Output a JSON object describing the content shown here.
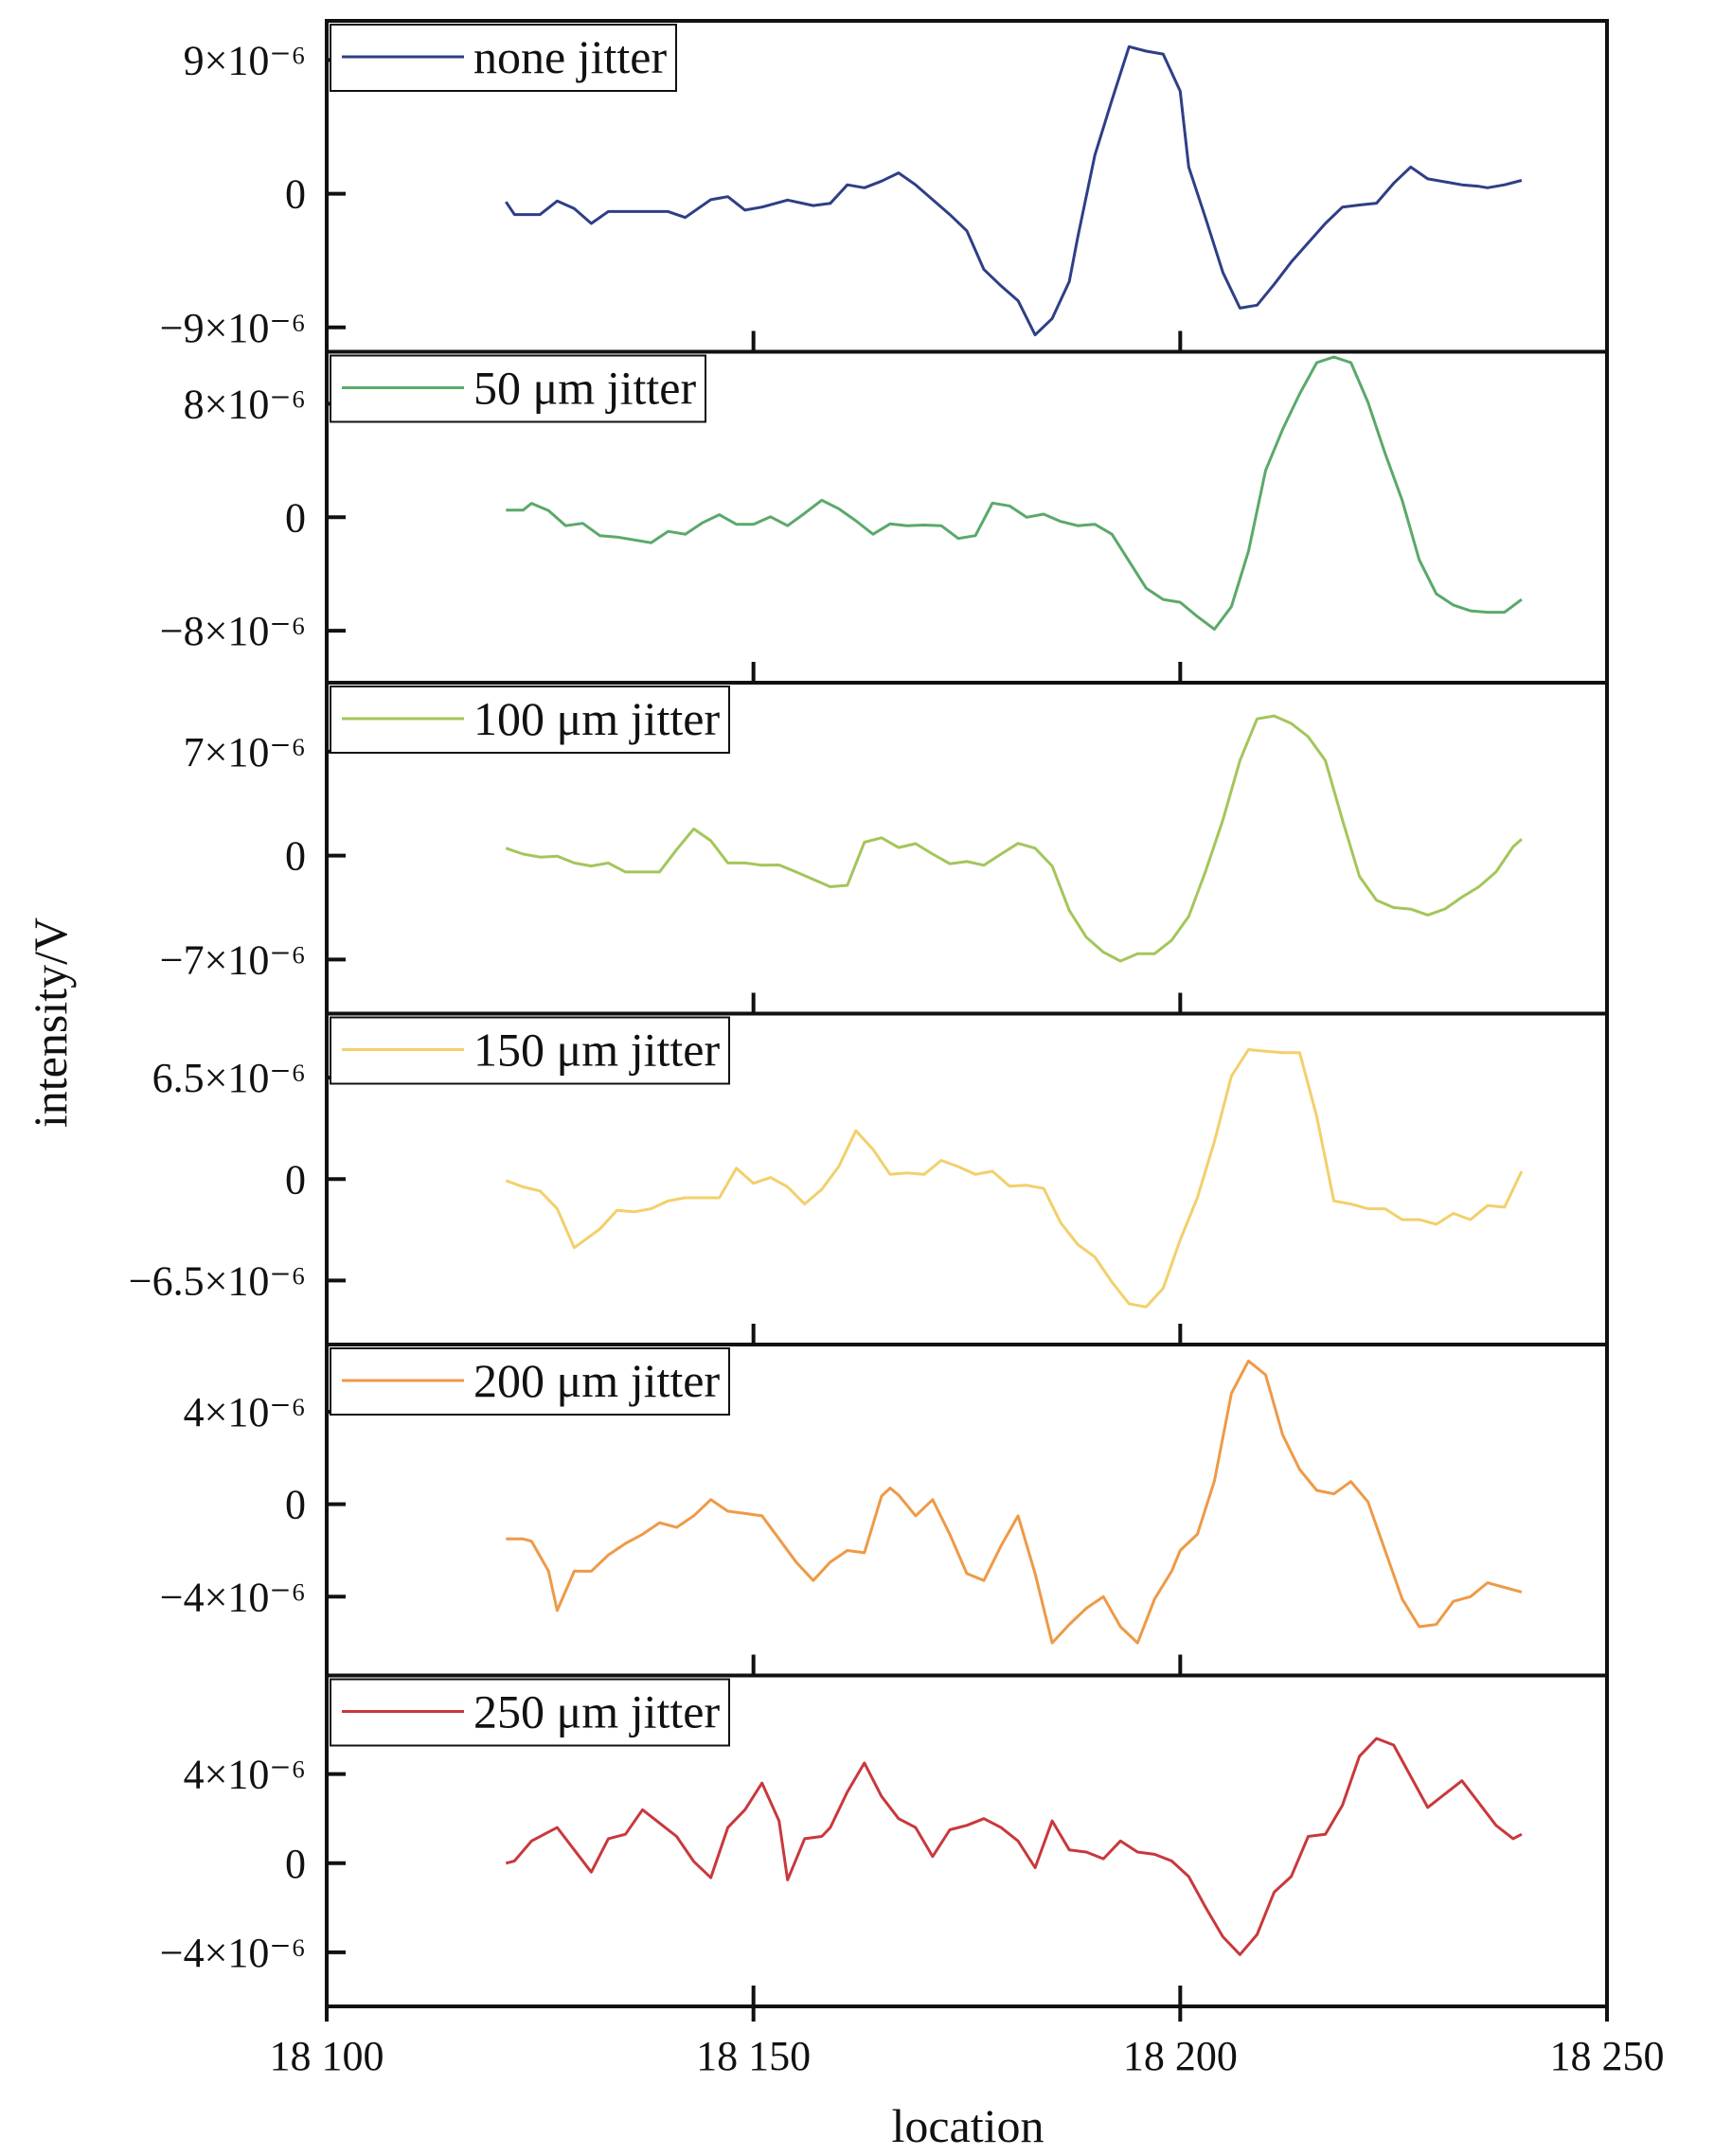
{
  "chart_data": {
    "type": "line",
    "xlabel": "location",
    "ylabel": "intensity/V",
    "xlim": [
      18100,
      18250
    ],
    "x_ticks": [
      18100,
      18150,
      18200,
      18250
    ],
    "x_tick_labels": [
      "18 100",
      "18 150",
      "18 200",
      "18 250"
    ],
    "grid": false,
    "legend_position": "top-left (each panel)",
    "panels": [
      {
        "name": "none jitter",
        "color": "#2f3f86",
        "ylim": [
          -1e-05,
          1.1e-05
        ],
        "y_ticks": [
          9e-06,
          0,
          -9e-06
        ],
        "y_tick_labels": [
          "9×10⁻⁶",
          "0",
          "−9×10⁻⁶"
        ],
        "x": [
          18121,
          18122,
          18125,
          18127,
          18129,
          18131,
          18133,
          18136,
          18140,
          18142,
          18145,
          18147,
          18149,
          18151,
          18154,
          18157,
          18159,
          18161,
          18163,
          18165,
          18167,
          18169,
          18171,
          18173,
          18175,
          18177,
          18179,
          18181,
          18183,
          18185,
          18187,
          18188,
          18190,
          18192,
          18194,
          18196,
          18198,
          18200,
          18201,
          18203,
          18205,
          18207,
          18209,
          18211,
          18213,
          18215,
          18217,
          18219,
          18221,
          18223,
          18225,
          18227,
          18229,
          18231,
          18233,
          18235,
          18236,
          18238,
          18240
        ],
        "y": [
          -5.5e-07,
          -1.4e-06,
          -1.4e-06,
          -4.9e-07,
          -1e-06,
          -2e-06,
          -1.2e-06,
          -1.2e-06,
          -1.2e-06,
          -1.6e-06,
          -4e-07,
          -2e-07,
          -1.1e-06,
          -9e-07,
          -4.3e-07,
          -8e-07,
          -6.5e-07,
          6e-07,
          4e-07,
          8.5e-07,
          1.4e-06,
          6e-07,
          -4e-07,
          -1.4e-06,
          -2.5e-06,
          -5.1e-06,
          -6.2e-06,
          -7.2e-06,
          -9.5e-06,
          -8.4e-06,
          -5.9e-06,
          -2.9e-06,
          2.6e-06,
          6.3e-06,
          9.9e-06,
          9.6e-06,
          9.4e-06,
          6.9e-06,
          1.8e-06,
          -1.7e-06,
          -5.3e-06,
          -7.7e-06,
          -7.5e-06,
          -6.1e-06,
          -4.6e-06,
          -3.3e-06,
          -2e-06,
          -9e-07,
          -7.6e-07,
          -6.4e-07,
          7e-07,
          1.8e-06,
          1e-06,
          8e-07,
          6e-07,
          5e-07,
          4e-07,
          6e-07,
          9e-07
        ]
      },
      {
        "name": "50 μm jitter",
        "color": "#5aa96a",
        "ylim": [
          -1.1e-05,
          1.1e-05
        ],
        "y_ticks": [
          8e-06,
          0,
          -8e-06
        ],
        "y_tick_labels": [
          "8×10⁻⁶",
          "0",
          "−8×10⁻⁶"
        ],
        "x": [
          18121,
          18123,
          18124,
          18126,
          18128,
          18130,
          18132,
          18134,
          18136,
          18138,
          18140,
          18142,
          18144,
          18146,
          18148,
          18150,
          18152,
          18154,
          18156,
          18158,
          18160,
          18162,
          18164,
          18166,
          18168,
          18170,
          18172,
          18174,
          18176,
          18178,
          18180,
          18182,
          18184,
          18186,
          18188,
          18190,
          18192,
          18194,
          18196,
          18198,
          18200,
          18202,
          18204,
          18206,
          18208,
          18210,
          18212,
          18214,
          18216,
          18218,
          18220,
          18222,
          18224,
          18226,
          18228,
          18230,
          18232,
          18234,
          18236,
          18238,
          18240
        ],
        "y": [
          5e-07,
          5e-07,
          9.8e-07,
          4.7e-07,
          -6e-07,
          -4.3e-07,
          -1.3e-06,
          -1.4e-06,
          -1.6e-06,
          -1.8e-06,
          -1e-06,
          -1.2e-06,
          -4e-07,
          1.8e-07,
          -5e-07,
          -5e-07,
          3e-08,
          -6e-07,
          2.8e-07,
          1.2e-06,
          6e-07,
          -2.5e-07,
          -1.2e-06,
          -4.7e-07,
          -6e-07,
          -5.5e-07,
          -6e-07,
          -1.5e-06,
          -1.3e-06,
          1e-06,
          8e-07,
          0.0,
          2.2e-07,
          -3e-07,
          -6e-07,
          -5e-07,
          -1.2e-06,
          -3.1e-06,
          -5e-06,
          -5.8e-06,
          -6e-06,
          -7e-06,
          -7.9e-06,
          -6.3e-06,
          -2.4e-06,
          3.3e-06,
          6.2e-06,
          8.7e-06,
          1.09e-05,
          1.13e-05,
          1.09e-05,
          8.1e-06,
          4.5e-06,
          1.2e-06,
          -3e-06,
          -5.4e-06,
          -6.2e-06,
          -6.6e-06,
          -6.7e-06,
          -6.7e-06,
          -5.8e-06
        ]
      },
      {
        "name": "100 μm jitter",
        "color": "#a3c65a",
        "ylim": [
          -1e-05,
          1.1e-05
        ],
        "y_ticks": [
          7e-06,
          0,
          -7e-06
        ],
        "y_tick_labels": [
          "7×10⁻⁶",
          "0",
          "−7×10⁻⁶"
        ],
        "x": [
          18121,
          18123,
          18125,
          18127,
          18129,
          18131,
          18133,
          18135,
          18137,
          18139,
          18141,
          18143,
          18145,
          18147,
          18149,
          18151,
          18153,
          18155,
          18157,
          18159,
          18161,
          18163,
          18165,
          18167,
          18169,
          18171,
          18173,
          18175,
          18177,
          18179,
          18181,
          18183,
          18185,
          18187,
          18189,
          18191,
          18193,
          18195,
          18197,
          18199,
          18201,
          18203,
          18205,
          18207,
          18209,
          18211,
          18213,
          18215,
          18217,
          18219,
          18221,
          18223,
          18225,
          18227,
          18229,
          18231,
          18233,
          18235,
          18237,
          18239,
          18240
        ],
        "y": [
          5e-07,
          1e-07,
          -1e-07,
          -4e-08,
          -5e-07,
          -7e-07,
          -5e-07,
          -1.1e-06,
          -1.1e-06,
          -1.1e-06,
          4e-07,
          1.8e-06,
          1e-06,
          -5e-07,
          -5e-07,
          -6.5e-07,
          -6.3e-07,
          -1.1e-06,
          -1.6e-06,
          -2.1e-06,
          -2e-06,
          9e-07,
          1.2e-06,
          5.4e-07,
          8e-07,
          1e-07,
          -5.5e-07,
          -4e-07,
          -6.5e-07,
          1e-07,
          8.2e-07,
          5e-07,
          -7e-07,
          -3.7e-06,
          -5.5e-06,
          -6.5e-06,
          -7.1e-06,
          -6.6e-06,
          -6.6e-06,
          -5.7e-06,
          -4.1e-06,
          -1e-06,
          2.4e-06,
          6.4e-06,
          9.2e-06,
          9.4e-06,
          8.9e-06,
          8e-06,
          6.4e-06,
          2.4e-06,
          -1.4e-06,
          -3e-06,
          -3.5e-06,
          -3.6e-06,
          -4e-06,
          -3.6e-06,
          -2.8e-06,
          -2.1e-06,
          -1.1e-06,
          6e-07,
          1.1e-06
        ]
      },
      {
        "name": "150 μm jitter",
        "color": "#f2d06b",
        "ylim": [
          -1e-05,
          1e-05
        ],
        "y_ticks": [
          6.5e-06,
          0,
          -6.5e-06
        ],
        "y_tick_labels": [
          "6.5×10⁻⁶",
          "0",
          "−6.5×10⁻⁶"
        ],
        "x": [
          18121,
          18123,
          18125,
          18127,
          18129,
          18130,
          18132,
          18134,
          18136,
          18138,
          18140,
          18142,
          18144,
          18146,
          18148,
          18150,
          18152,
          18154,
          18156,
          18158,
          18160,
          18162,
          18164,
          18166,
          18168,
          18170,
          18172,
          18174,
          18176,
          18178,
          18180,
          18182,
          18184,
          18186,
          18188,
          18190,
          18192,
          18194,
          18196,
          18198,
          18200,
          18202,
          18204,
          18206,
          18208,
          18210,
          18212,
          18214,
          18216,
          18218,
          18220,
          18222,
          18224,
          18226,
          18228,
          18230,
          18232,
          18234,
          18236,
          18238,
          18240
        ],
        "y": [
          -1e-07,
          -5e-07,
          -7.6e-07,
          -1.9e-06,
          -4.4e-06,
          -4e-06,
          -3.2e-06,
          -2e-06,
          -2.1e-06,
          -1.9e-06,
          -1.4e-06,
          -1.2e-06,
          -1.2e-06,
          -1.2e-06,
          7e-07,
          -2.7e-07,
          1e-07,
          -5e-07,
          -1.6e-06,
          -6.6e-07,
          8.1e-07,
          3.1e-06,
          1.9e-06,
          3e-07,
          4e-07,
          3e-07,
          1.2e-06,
          8e-07,
          3e-07,
          5e-07,
          -4.6e-07,
          -4e-07,
          -6e-07,
          -2.8e-06,
          -4.2e-06,
          -5e-06,
          -6.6e-06,
          -8e-06,
          -8.2e-06,
          -7e-06,
          -3.9e-06,
          -1.2e-06,
          2.4e-06,
          6.6e-06,
          8.3e-06,
          8.2e-06,
          8.1e-06,
          8.1e-06,
          4e-06,
          -1.4e-06,
          -1.6e-06,
          -1.9e-06,
          -1.9e-06,
          -2.6e-06,
          -2.6e-06,
          -2.9e-06,
          -2.2e-06,
          -2.6e-06,
          -1.7e-06,
          -1.8e-06,
          5e-07
        ]
      },
      {
        "name": "200 μm jitter",
        "color": "#ee9a47",
        "ylim": [
          -7e-06,
          6.5e-06
        ],
        "y_ticks": [
          4e-06,
          0,
          -4e-06
        ],
        "y_tick_labels": [
          "4×10⁻⁶",
          "0",
          "−4×10⁻⁶"
        ],
        "x": [
          18121,
          18123,
          18124,
          18126,
          18127,
          18129,
          18131,
          18133,
          18135,
          18137,
          18139,
          18141,
          18143,
          18145,
          18147,
          18149,
          18151,
          18153,
          18155,
          18157,
          18159,
          18161,
          18163,
          18165,
          18166,
          18167,
          18169,
          18171,
          18173,
          18175,
          18177,
          18179,
          18181,
          18183,
          18185,
          18187,
          18189,
          18191,
          18193,
          18195,
          18197,
          18199,
          18200,
          18202,
          18204,
          18206,
          18208,
          18210,
          18212,
          18214,
          18216,
          18218,
          18220,
          18222,
          18224,
          18226,
          18228,
          18230,
          18232,
          18234,
          18236,
          18238,
          18240
        ],
        "y": [
          -1.5e-06,
          -1.5e-06,
          -1.6e-06,
          -2.9e-06,
          -4.6e-06,
          -2.9e-06,
          -2.9e-06,
          -2.2e-06,
          -1.7e-06,
          -1.3e-06,
          -8e-07,
          -1e-06,
          -5e-07,
          2e-07,
          -3e-07,
          -4e-07,
          -5e-07,
          -1.5e-06,
          -2.5e-06,
          -3.3e-06,
          -2.5e-06,
          -2e-06,
          -2.1e-06,
          3.5e-07,
          7e-07,
          4e-07,
          -5e-07,
          2e-07,
          -1.3e-06,
          -3e-06,
          -3.3e-06,
          -1.8e-06,
          -5e-07,
          -3e-06,
          -6e-06,
          -5.2e-06,
          -4.5e-06,
          -4e-06,
          -5.3e-06,
          -6e-06,
          -4.1e-06,
          -2.9e-06,
          -2e-06,
          -1.3e-06,
          1e-06,
          4.8e-06,
          6.2e-06,
          5.6e-06,
          3e-06,
          1.5e-06,
          6e-07,
          4.5e-07,
          9.8e-07,
          1e-07,
          -2e-06,
          -4.1e-06,
          -5.3e-06,
          -5.2e-06,
          -4.2e-06,
          -4e-06,
          -3.4e-06,
          -3.6e-06,
          -3.8e-06
        ]
      },
      {
        "name": "250 μm jitter",
        "color": "#c9383c",
        "ylim": [
          -6e-06,
          8e-06
        ],
        "y_ticks": [
          4e-06,
          0,
          -4e-06
        ],
        "y_tick_labels": [
          "4×10⁻⁶",
          "0",
          "−4×10⁻⁶"
        ],
        "x": [
          18121,
          18122,
          18124,
          18126,
          18127,
          18129,
          18131,
          18133,
          18135,
          18137,
          18139,
          18141,
          18143,
          18145,
          18147,
          18149,
          18151,
          18153,
          18154,
          18156,
          18158,
          18159,
          18161,
          18163,
          18165,
          18167,
          18169,
          18171,
          18173,
          18175,
          18177,
          18179,
          18181,
          18183,
          18185,
          18187,
          18189,
          18191,
          18193,
          18195,
          18197,
          18199,
          18201,
          18203,
          18205,
          18207,
          18209,
          18211,
          18213,
          18215,
          18217,
          18219,
          18221,
          18223,
          18225,
          18227,
          18229,
          18231,
          18233,
          18235,
          18237,
          18239,
          18240
        ],
        "y": [
          0.0,
          1e-07,
          1e-06,
          1.4e-06,
          1.6e-06,
          6e-07,
          -4e-07,
          1.1e-06,
          1.3e-06,
          2.4e-06,
          1.8e-06,
          1.2e-06,
          8e-08,
          -6.5e-07,
          1.6e-06,
          2.4e-06,
          3.6e-06,
          1.9e-06,
          -7.5e-07,
          1.1e-06,
          1.2e-06,
          1.6e-06,
          3.2e-06,
          4.5e-06,
          3e-06,
          2e-06,
          1.6e-06,
          3e-07,
          1.5e-06,
          1.7e-06,
          2e-06,
          1.6e-06,
          1e-06,
          -2e-07,
          1.9e-06,
          6e-07,
          5e-07,
          2e-07,
          1e-06,
          5e-07,
          4e-07,
          1e-07,
          -6e-07,
          -2e-06,
          -3.3e-06,
          -4.1e-06,
          -3.2e-06,
          -1.3e-06,
          -6e-07,
          1.2e-06,
          1.3e-06,
          2.6e-06,
          4.8e-06,
          5.6e-06,
          5.3e-06,
          3.9e-06,
          2.5e-06,
          3.1e-06,
          3.7e-06,
          2.7e-06,
          1.7e-06,
          1.1e-06,
          1.3e-06
        ]
      }
    ]
  }
}
